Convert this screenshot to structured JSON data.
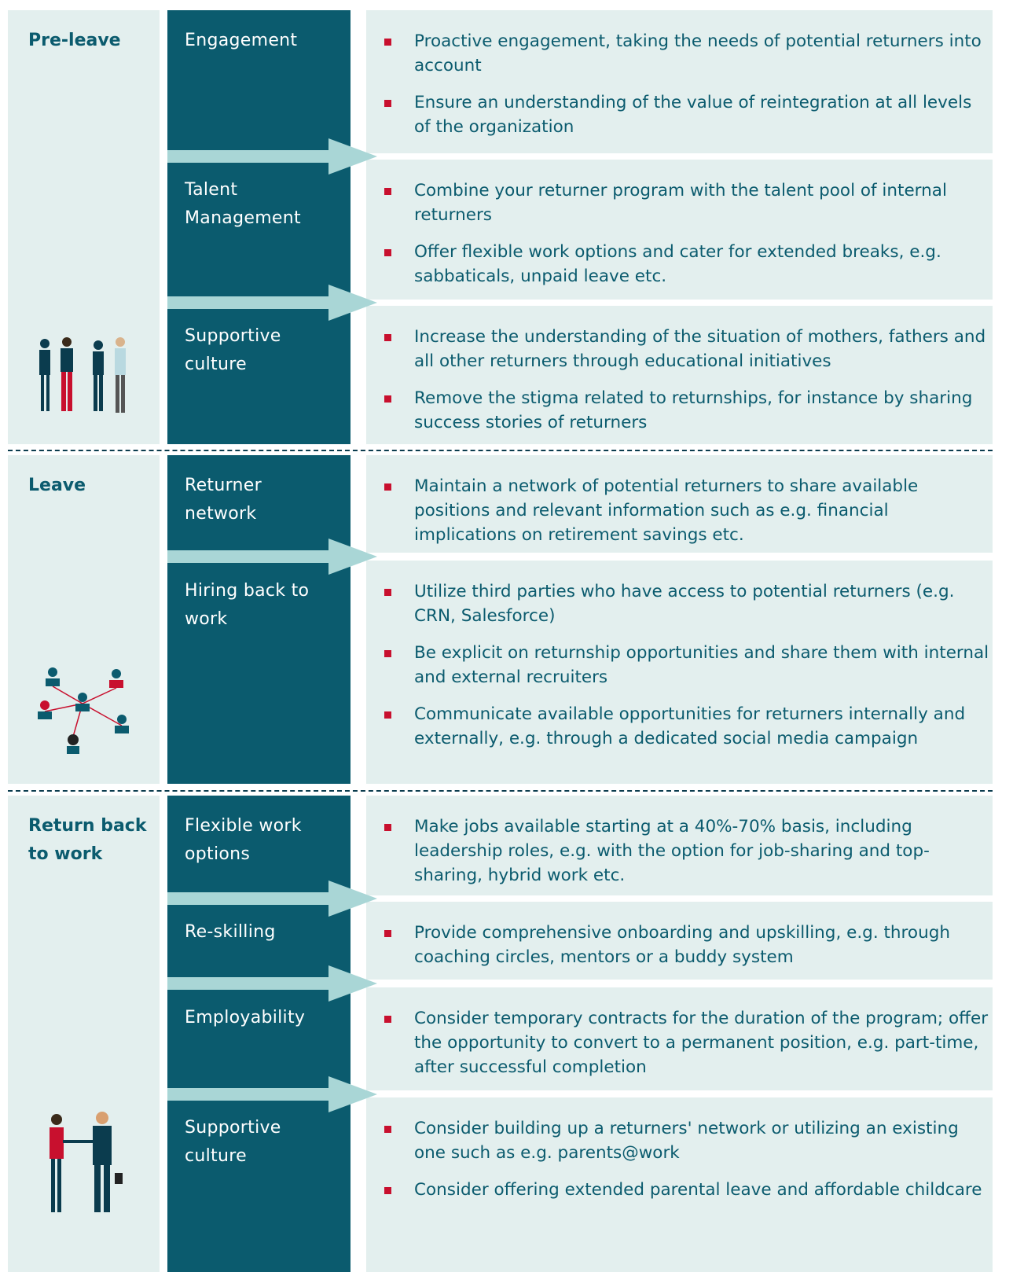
{
  "phases": [
    {
      "label": "Pre-leave",
      "rows": [
        {
          "category": "Engagement",
          "bullets": [
            "Proactive engagement, taking the needs of potential returners into account",
            "Ensure an understanding of the value of reintegration at all levels of the organization"
          ]
        },
        {
          "category": "Talent Management",
          "bullets": [
            "Combine your returner program with the talent pool of internal returners",
            "Offer flexible work options and cater for extended breaks, e.g. sabbaticals, unpaid leave etc."
          ]
        },
        {
          "category": "Supportive culture",
          "bullets": [
            "Increase the understanding of the situation of mothers, fathers and all other returners through educational initiatives",
            "Remove the stigma related to returnships, for instance by sharing success stories of returners"
          ]
        }
      ]
    },
    {
      "label": "Leave",
      "rows": [
        {
          "category": "Returner network",
          "bullets": [
            "Maintain a network of potential returners to share available positions and relevant information such as e.g. financial implications on retirement savings etc."
          ]
        },
        {
          "category": "Hiring back to work",
          "bullets": [
            "Utilize third parties who have access to potential returners (e.g. CRN, Salesforce)",
            "Be explicit on returnship opportunities and share them with internal and external recruiters",
            "Communicate available opportunities for returners internally and externally, e.g. through a dedicated social media campaign"
          ]
        }
      ]
    },
    {
      "label": "Return back to work",
      "rows": [
        {
          "category": "Flexible work options",
          "bullets": [
            "Make jobs available starting at a 40%-70% basis, including leadership roles, e.g. with the option for job-sharing and top-sharing, hybrid work etc."
          ]
        },
        {
          "category": "Re-skilling",
          "bullets": [
            "Provide comprehensive onboarding and upskilling, e.g. through coaching circles, mentors or a buddy system"
          ]
        },
        {
          "category": "Employability",
          "bullets": [
            "Consider temporary contracts for the duration of the program; offer the opportunity to convert to a permanent position, e.g. part-time, after successful completion"
          ]
        },
        {
          "category": "Supportive culture",
          "bullets": [
            "Consider building up a returners' network or utilizing an existing one such as e.g. parents@work",
            "Consider offering extended parental leave and affordable childcare"
          ]
        }
      ]
    }
  ]
}
